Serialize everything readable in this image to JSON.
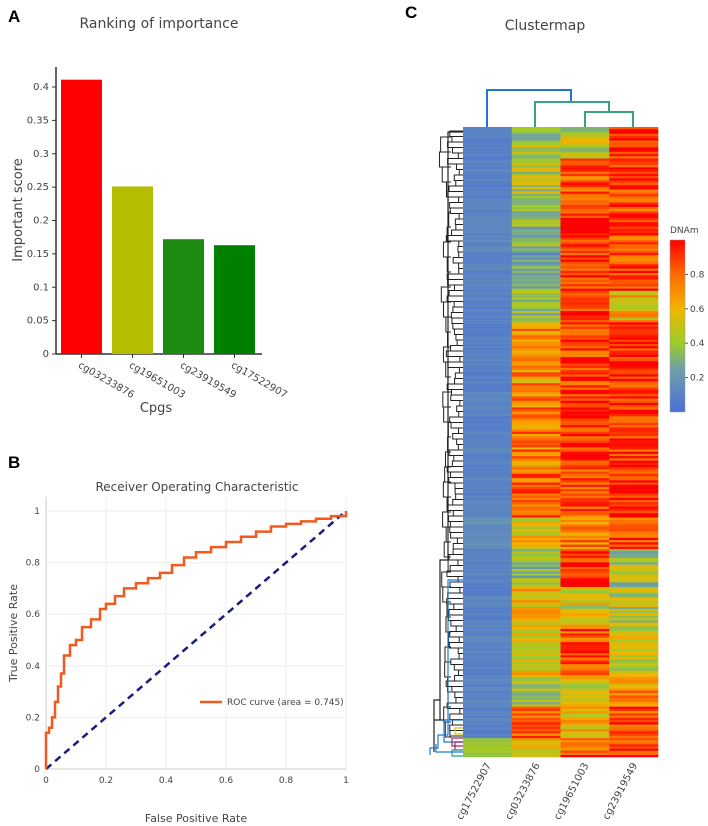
{
  "panels": {
    "a": "A",
    "b": "B",
    "c": "C"
  },
  "chart_data": [
    {
      "type": "bar",
      "title": "Ranking of importance",
      "xlabel": "Cpgs",
      "ylabel": "Important score",
      "categories": [
        "cg03233876",
        "cg19651003",
        "cg23919549",
        "cg17522907"
      ],
      "values": [
        0.411,
        0.251,
        0.172,
        0.163
      ],
      "colors": [
        "#ff0000",
        "#b5bd00",
        "#1e8a12",
        "#008000"
      ],
      "ylim": [
        0,
        0.43
      ],
      "yticks": [
        "0",
        "0.05",
        "0.1",
        "0.15",
        "0.2",
        "0.25",
        "0.3",
        "0.35",
        "0.4"
      ]
    },
    {
      "type": "line",
      "title": "Receiver Operating Characteristic",
      "xlabel": "False Positive Rate",
      "ylabel": "True Positive Rate",
      "xlim": [
        0,
        1
      ],
      "ylim": [
        0,
        1
      ],
      "xticks": [
        "0",
        "0.2",
        "0.4",
        "0.6",
        "0.8",
        "1"
      ],
      "yticks": [
        "0",
        "0.2",
        "0.4",
        "0.6",
        "0.8",
        "1"
      ],
      "grid": true,
      "legend": "ROC curve (area = 0.745)",
      "legend_position": "lower-right",
      "line_color": "#f05a1e",
      "diagonal_color": "#1c1c80",
      "series": [
        {
          "name": "ROC curve",
          "x": [
            0,
            0,
            0.01,
            0.02,
            0.03,
            0.04,
            0.05,
            0.06,
            0.08,
            0.1,
            0.12,
            0.15,
            0.18,
            0.2,
            0.23,
            0.26,
            0.3,
            0.34,
            0.38,
            0.42,
            0.46,
            0.5,
            0.55,
            0.6,
            0.65,
            0.7,
            0.75,
            0.8,
            0.85,
            0.9,
            0.95,
            1.0
          ],
          "y": [
            0,
            0.12,
            0.14,
            0.16,
            0.2,
            0.26,
            0.32,
            0.37,
            0.44,
            0.48,
            0.5,
            0.55,
            0.58,
            0.62,
            0.64,
            0.67,
            0.7,
            0.72,
            0.74,
            0.76,
            0.79,
            0.82,
            0.84,
            0.86,
            0.88,
            0.9,
            0.92,
            0.94,
            0.95,
            0.96,
            0.97,
            0.98
          ]
        },
        {
          "name": "chance",
          "x": [
            0,
            1
          ],
          "y": [
            0,
            1
          ]
        }
      ]
    },
    {
      "type": "heatmap",
      "title": "Clustermap",
      "columns": [
        "cg17522907",
        "cg03233876",
        "cg19651003",
        "cg23919549"
      ],
      "colorbar_label": "DNAm",
      "colorbar_ticks": [
        "0.2",
        "0.4",
        "0.6",
        "0.8"
      ],
      "colorbar_range": [
        0,
        1
      ],
      "segments": [
        {
          "frac": 0.05,
          "values": [
            0.1,
            0.4,
            0.45,
            0.92
          ]
        },
        {
          "frac": 0.07,
          "values": [
            0.1,
            0.45,
            0.85,
            0.9
          ]
        },
        {
          "frac": 0.08,
          "values": [
            0.12,
            0.32,
            0.95,
            0.85
          ]
        },
        {
          "frac": 0.06,
          "values": [
            0.1,
            0.25,
            0.9,
            0.88
          ]
        },
        {
          "frac": 0.05,
          "values": [
            0.1,
            0.4,
            0.9,
            0.6
          ]
        },
        {
          "frac": 0.1,
          "values": [
            0.1,
            0.7,
            0.9,
            0.95
          ]
        },
        {
          "frac": 0.13,
          "values": [
            0.1,
            0.75,
            0.92,
            0.9
          ]
        },
        {
          "frac": 0.08,
          "values": [
            0.1,
            0.8,
            0.85,
            0.95
          ]
        },
        {
          "frac": 0.05,
          "values": [
            0.15,
            0.55,
            0.75,
            0.85
          ]
        },
        {
          "frac": 0.06,
          "values": [
            0.1,
            0.35,
            0.95,
            0.4
          ]
        },
        {
          "frac": 0.06,
          "values": [
            0.1,
            0.6,
            0.5,
            0.45
          ]
        },
        {
          "frac": 0.08,
          "values": [
            0.1,
            0.55,
            0.85,
            0.5
          ]
        },
        {
          "frac": 0.05,
          "values": [
            0.1,
            0.45,
            0.5,
            0.7
          ]
        },
        {
          "frac": 0.05,
          "values": [
            0.1,
            0.8,
            0.6,
            0.85
          ]
        },
        {
          "frac": 0.03,
          "values": [
            0.4,
            0.6,
            0.85,
            0.9
          ]
        }
      ]
    }
  ]
}
